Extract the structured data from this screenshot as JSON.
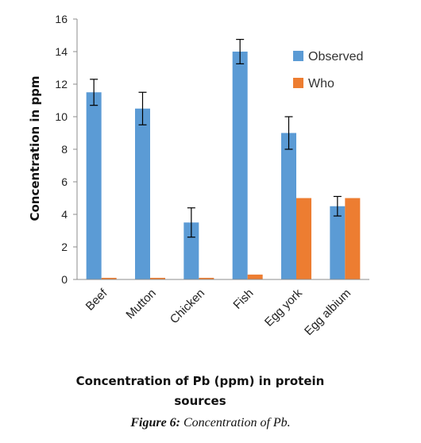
{
  "chart_data": {
    "type": "bar",
    "categories": [
      "Beef",
      "Mutton",
      "Chicken",
      "Fish",
      "Egg york",
      "Egg albium"
    ],
    "series": [
      {
        "name": "Observed",
        "values": [
          11.5,
          10.5,
          3.5,
          14.0,
          9.0,
          4.5
        ],
        "error": [
          0.8,
          1.0,
          0.9,
          0.75,
          1.0,
          0.6
        ],
        "color": "#5b9bd5"
      },
      {
        "name": "Who",
        "values": [
          0.1,
          0.1,
          0.1,
          0.3,
          5.0,
          5.0
        ],
        "color": "#ed7d31"
      }
    ],
    "ylim": [
      0,
      16
    ],
    "yticks": [
      0,
      2,
      4,
      6,
      8,
      10,
      12,
      14,
      16
    ],
    "ylabel": "Concentration in ppm",
    "xlabel_lines": [
      "Concentration of Pb (ppm) in protein",
      "sources"
    ],
    "legend_position": "top-right",
    "grid": false
  },
  "caption": {
    "label": "Figure 6:",
    "text": " Concentration of Pb."
  }
}
